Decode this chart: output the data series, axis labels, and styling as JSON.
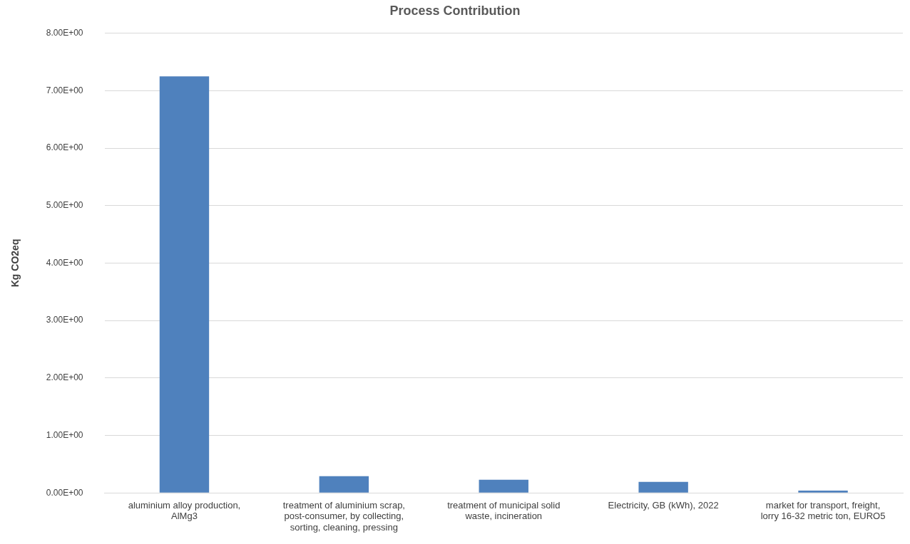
{
  "chart_data": {
    "type": "bar",
    "title": "Process Contribution",
    "ylabel": "Kg CO2eq",
    "categories": [
      "aluminium alloy production, AlMg3",
      "treatment of aluminium scrap, post-consumer, by collecting, sorting, cleaning, pressing",
      "treatment of municipal solid waste, incineration",
      "Electricity, GB (kWh), 2022",
      "market for transport, freight, lorry 16-32 metric ton, EURO5"
    ],
    "values": [
      7.25,
      0.29,
      0.23,
      0.19,
      0.04
    ],
    "color": "#4f81bd",
    "ylim": [
      0,
      8
    ],
    "yticks": [
      {
        "value": 0,
        "label": "0.00E+00"
      },
      {
        "value": 1,
        "label": "1.00E+00"
      },
      {
        "value": 2,
        "label": "2.00E+00"
      },
      {
        "value": 3,
        "label": "3.00E+00"
      },
      {
        "value": 4,
        "label": "4.00E+00"
      },
      {
        "value": 5,
        "label": "5.00E+00"
      },
      {
        "value": 6,
        "label": "6.00E+00"
      },
      {
        "value": 7,
        "label": "7.00E+00"
      },
      {
        "value": 8,
        "label": "8.00E+00"
      }
    ],
    "grid": "y",
    "legend": false
  }
}
